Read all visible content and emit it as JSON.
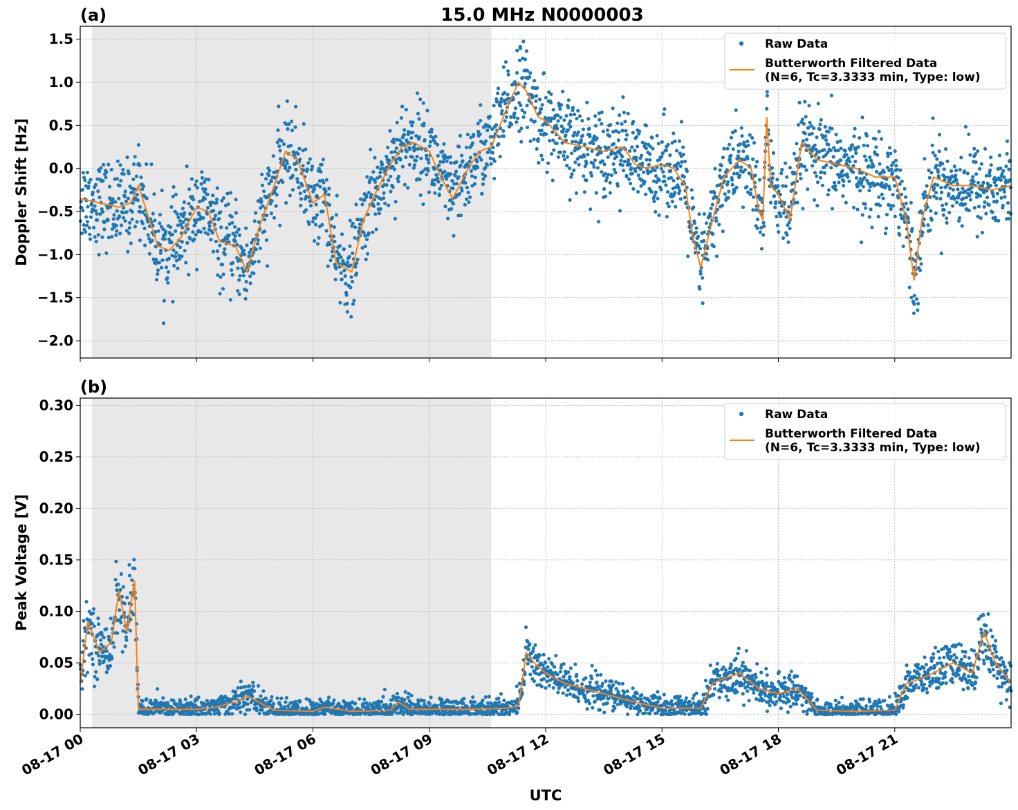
{
  "figure": {
    "title": "15.0 MHz N0000003",
    "xlabel": "UTC",
    "xtick_labels": [
      "08-17 00",
      "08-17 03",
      "08-17 06",
      "08-17 09",
      "08-17 12",
      "08-17 15",
      "08-17 18",
      "08-17 21"
    ],
    "colors": {
      "raw": "#1f77b4",
      "filtered": "#ff7f0e",
      "shade": "#e8e8e8",
      "grid": "#b0b0b0"
    }
  },
  "legend": {
    "raw_label": "Raw Data",
    "filtered_label_line1": "Butterworth Filtered Data",
    "filtered_label_line2": "(N=6, Tc=3.3333 min, Type: low)",
    "placement": "top-right"
  },
  "chart_data": [
    {
      "type": "scatter",
      "panel_label": "(a)",
      "ylabel": "Doppler Shift [Hz]",
      "xlim_hours": [
        0,
        24
      ],
      "ylim": [
        -2.2,
        1.65
      ],
      "yticks": [
        1.5,
        1.0,
        0.5,
        0.0,
        -0.5,
        -1.0,
        -1.5,
        -2.0
      ],
      "ytick_labels": [
        "1.5",
        "1.0",
        "0.5",
        "0.0",
        "−0.5",
        "−1.0",
        "−1.5",
        "−2.0"
      ],
      "shaded_hours": [
        0.3,
        10.6
      ],
      "grid": true,
      "series": [
        {
          "name": "Butterworth Filtered Data",
          "x_hours": [
            0,
            0.5,
            1,
            1.3,
            1.5,
            2,
            2.3,
            2.6,
            3,
            3.3,
            3.6,
            4,
            4.3,
            4.6,
            5,
            5.3,
            5.6,
            6,
            6.3,
            6.6,
            7,
            7.3,
            7.6,
            8,
            8.3,
            8.6,
            9,
            9.3,
            9.6,
            10,
            10.3,
            10.6,
            11,
            11.3,
            11.5,
            11.8,
            12,
            12.5,
            13,
            13.5,
            14,
            14.3,
            14.6,
            15,
            15.3,
            15.6,
            15.8,
            16,
            16.3,
            16.6,
            17,
            17.3,
            17.5,
            17.6,
            17.7,
            17.8,
            18,
            18.3,
            18.6,
            19,
            19.5,
            20,
            20.5,
            21,
            21.3,
            21.5,
            21.7,
            22,
            22.5,
            23,
            23.5,
            24
          ],
          "y_hz": [
            -0.35,
            -0.4,
            -0.45,
            -0.4,
            -0.2,
            -0.9,
            -0.95,
            -0.8,
            -0.45,
            -0.5,
            -0.85,
            -0.9,
            -1.2,
            -0.7,
            -0.2,
            0.2,
            0.1,
            -0.4,
            -0.3,
            -1.1,
            -1.2,
            -0.6,
            -0.3,
            0.05,
            0.25,
            0.3,
            0.2,
            -0.1,
            -0.35,
            0.0,
            0.2,
            0.25,
            0.7,
            1.0,
            0.9,
            0.6,
            0.55,
            0.3,
            0.25,
            0.2,
            0.25,
            0.05,
            0.0,
            0.05,
            0.0,
            -0.2,
            -0.8,
            -1.15,
            -0.6,
            -0.1,
            0.1,
            0.0,
            -0.5,
            -0.6,
            0.6,
            -0.2,
            -0.3,
            -0.6,
            0.3,
            0.1,
            0.05,
            0.0,
            -0.1,
            -0.1,
            -0.6,
            -1.3,
            -0.6,
            -0.1,
            -0.2,
            -0.2,
            -0.25,
            -0.2
          ]
        },
        {
          "name": "Raw Data",
          "spread_hz": 0.25
        }
      ]
    },
    {
      "type": "scatter",
      "panel_label": "(b)",
      "ylabel": "Peak Voltage [V]",
      "xlim_hours": [
        0,
        24
      ],
      "ylim": [
        -0.013,
        0.307
      ],
      "yticks": [
        0.3,
        0.25,
        0.2,
        0.15,
        0.1,
        0.05,
        0.0
      ],
      "ytick_labels": [
        "0.30",
        "0.25",
        "0.20",
        "0.15",
        "0.10",
        "0.05",
        "0.00"
      ],
      "shaded_hours": [
        0.3,
        10.6
      ],
      "grid": true,
      "series": [
        {
          "name": "Butterworth Filtered Data",
          "x_hours": [
            0,
            0.2,
            0.5,
            0.8,
            1.0,
            1.2,
            1.4,
            1.5,
            2,
            3,
            3.5,
            4,
            4.3,
            4.7,
            5,
            6,
            6.3,
            7,
            8,
            8.2,
            8.5,
            9,
            10,
            11,
            11.3,
            11.5,
            11.7,
            12,
            12.5,
            13,
            13.5,
            14,
            14.5,
            15,
            16,
            16.3,
            16.6,
            17,
            17.5,
            18,
            18.5,
            19,
            20,
            21,
            21.3,
            21.7,
            22,
            22.5,
            23,
            23.3,
            23.6,
            24
          ],
          "y_v": [
            0.03,
            0.09,
            0.06,
            0.07,
            0.12,
            0.08,
            0.13,
            0.005,
            0.005,
            0.005,
            0.007,
            0.012,
            0.018,
            0.01,
            0.004,
            0.003,
            0.007,
            0.003,
            0.004,
            0.012,
            0.005,
            0.005,
            0.005,
            0.006,
            0.008,
            0.06,
            0.05,
            0.04,
            0.03,
            0.025,
            0.02,
            0.015,
            0.01,
            0.006,
            0.006,
            0.03,
            0.035,
            0.04,
            0.025,
            0.02,
            0.025,
            0.004,
            0.003,
            0.004,
            0.03,
            0.035,
            0.04,
            0.05,
            0.04,
            0.08,
            0.05,
            0.03
          ]
        },
        {
          "name": "Raw Data",
          "spread_v": 0.012
        }
      ]
    }
  ]
}
